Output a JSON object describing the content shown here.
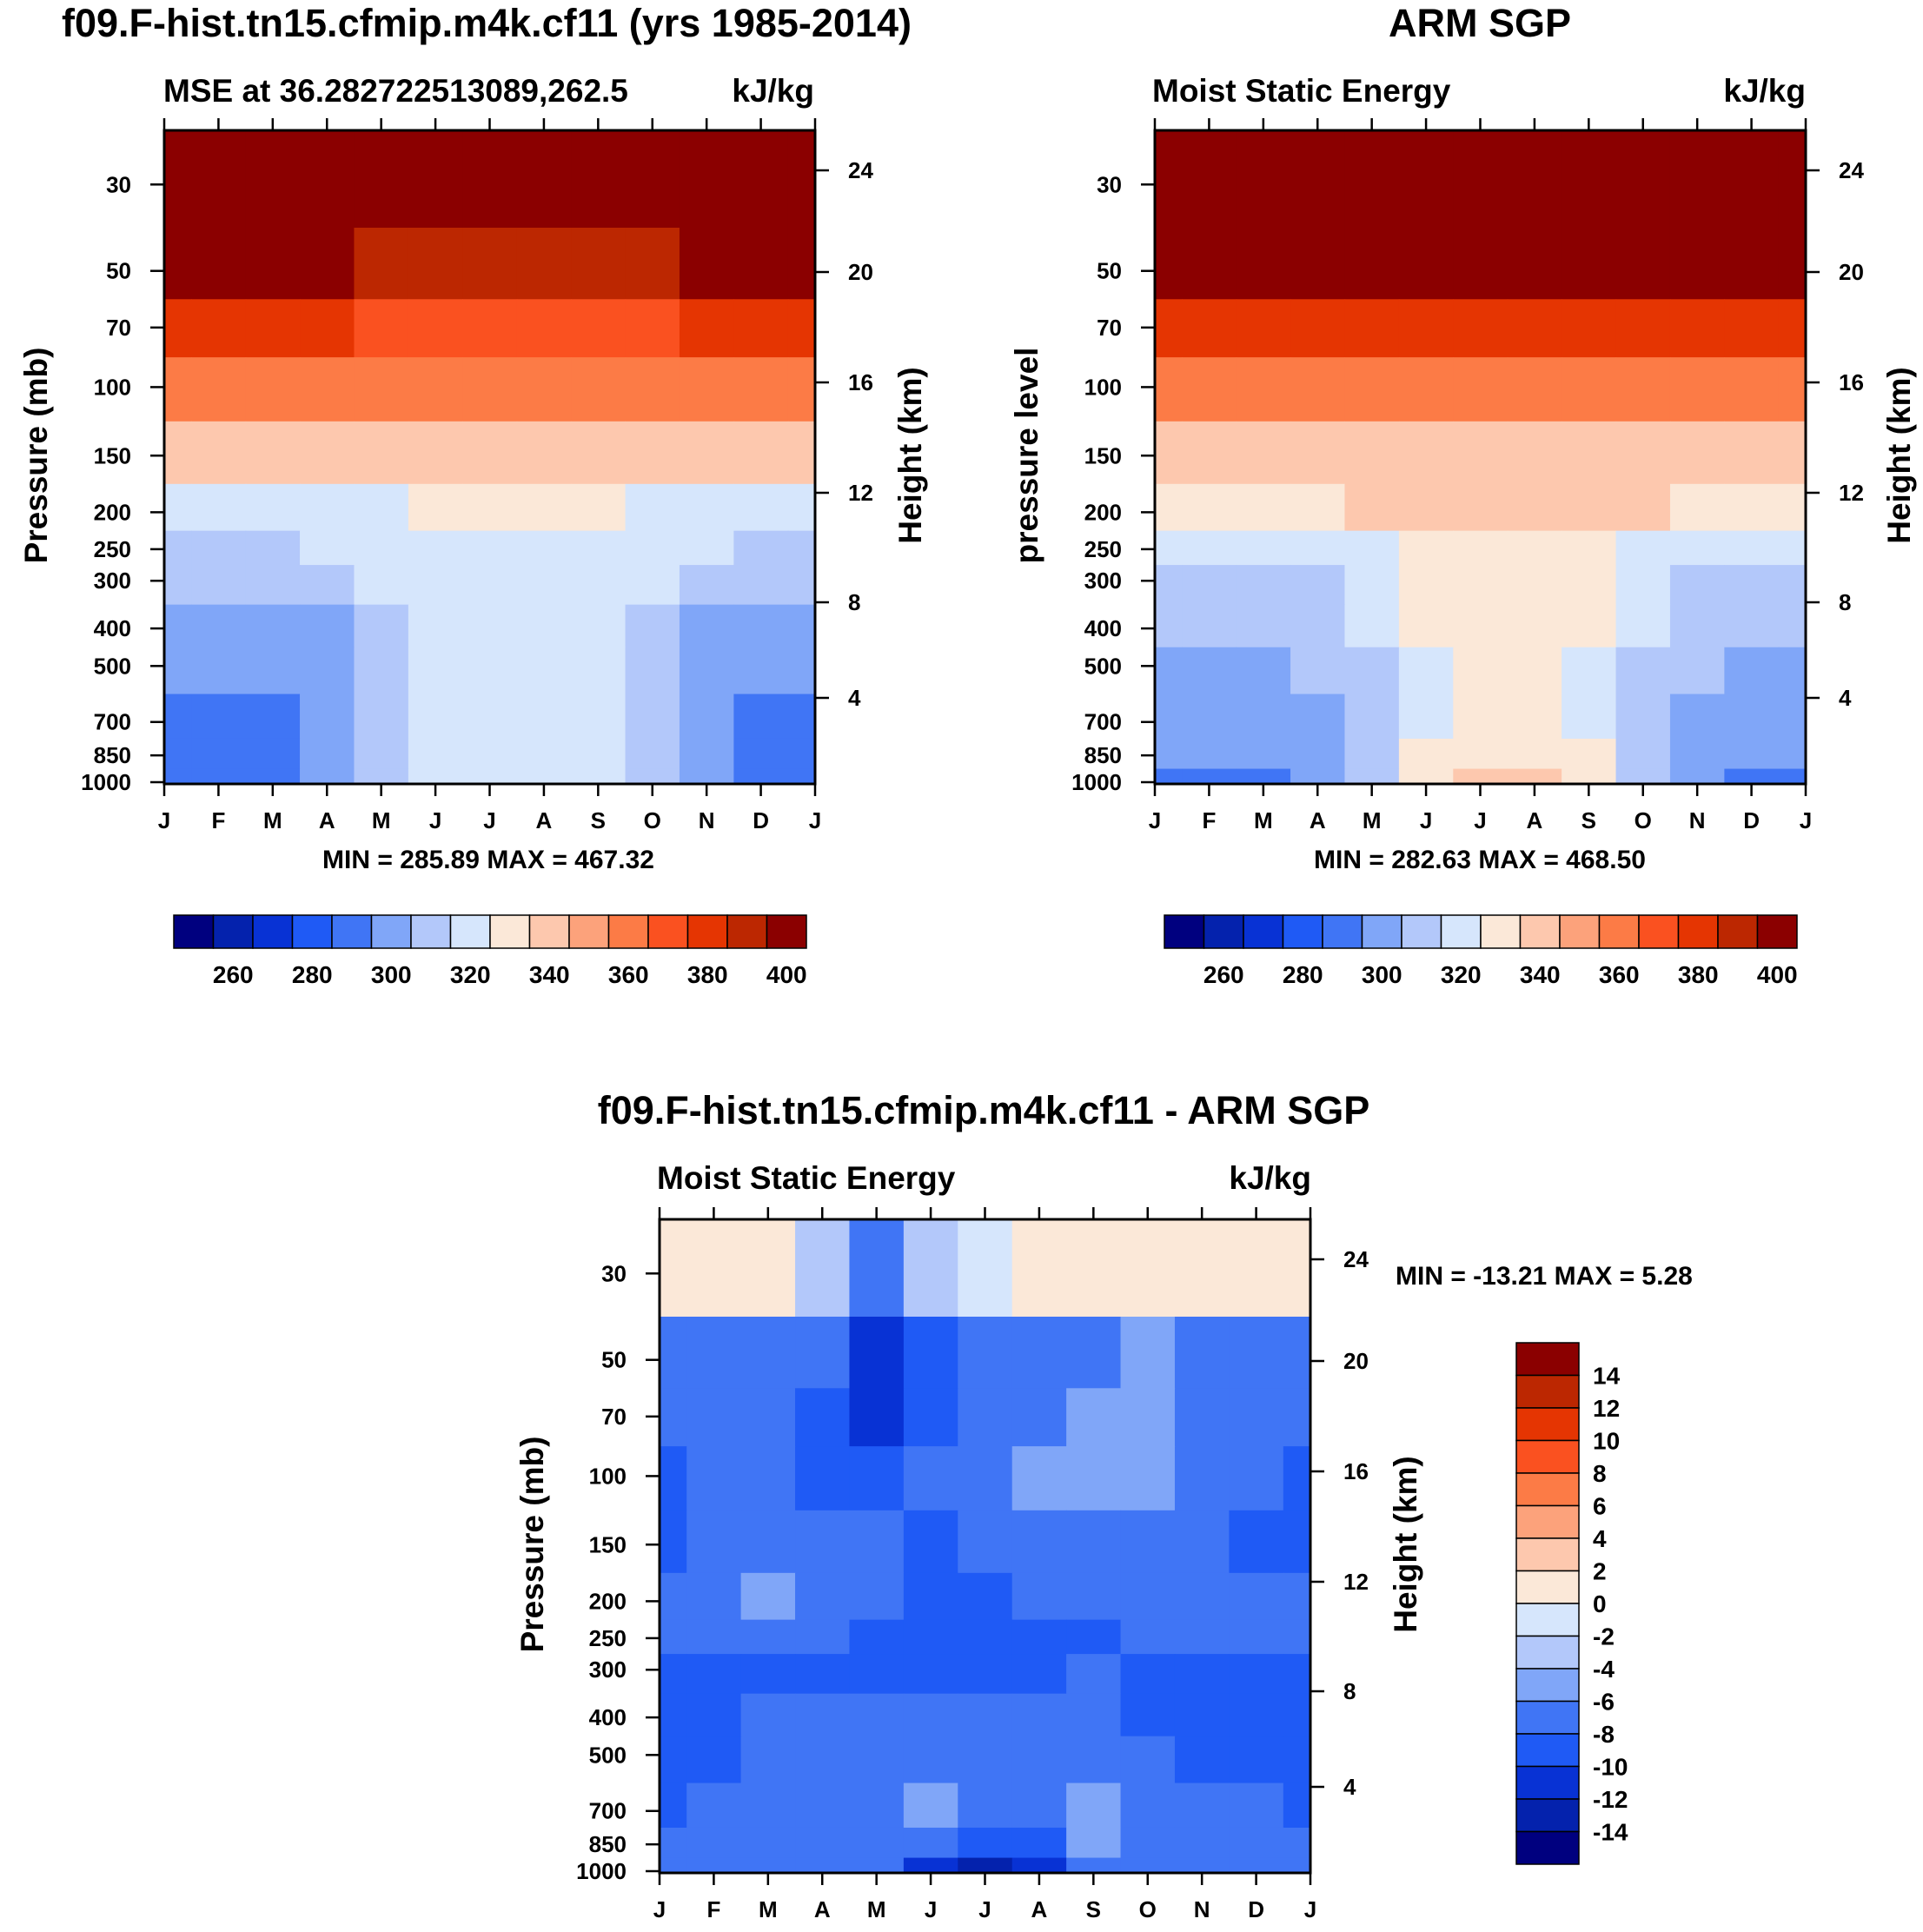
{
  "colors": {
    "frame": "#000000",
    "palette_levels": [
      "#00007f",
      "#0422ad",
      "#0832d4",
      "#1f5af5",
      "#4075f5",
      "#80a6f8",
      "#b3c8fa",
      "#d6e6fc",
      "#fbe8d8",
      "#fdc8ae",
      "#fca27b",
      "#fc7b46",
      "#fa5120",
      "#e53502",
      "#bc2701",
      "#8b0000"
    ]
  },
  "chart_data": [
    {
      "type": "heatmap",
      "figure_title": "f09.F-hist.tn15.cfmip.m4k.cf11 (yrs 1985-2014)",
      "left_title": "MSE at 36.282722513089,262.5",
      "right_title": "kJ/kg",
      "ylabel": "Pressure (mb)",
      "ylabel_right": "Height (km)",
      "stats": "MIN = 285.89 MAX = 467.32",
      "x_ticks": [
        "J",
        "F",
        "M",
        "A",
        "M",
        "J",
        "J",
        "A",
        "S",
        "O",
        "N",
        "D",
        "J"
      ],
      "y_ticks": [
        "30",
        "50",
        "70",
        "100",
        "150",
        "200",
        "250",
        "300",
        "400",
        "500",
        "700",
        "850",
        "1000"
      ],
      "y_ticks_right": [
        "24",
        "20",
        "16",
        "12",
        "8",
        "4"
      ],
      "colorbar_labels": [
        "260",
        "280",
        "300",
        "320",
        "340",
        "360",
        "380",
        "400"
      ],
      "pressure_levels": [
        30,
        50,
        70,
        100,
        150,
        200,
        250,
        300,
        400,
        500,
        700,
        850,
        1000
      ],
      "values_kJkg": [
        [
          460,
          460,
          461,
          461,
          460,
          459,
          458,
          458,
          459,
          460,
          460,
          460,
          460
        ],
        [
          402,
          401,
          400,
          400,
          398,
          396,
          395,
          395,
          396,
          398,
          400,
          401,
          402
        ],
        [
          381,
          380,
          380,
          380,
          378,
          377,
          376,
          376,
          377,
          378,
          380,
          381,
          381
        ],
        [
          366,
          365,
          365,
          365,
          364,
          363,
          362,
          362,
          363,
          364,
          365,
          366,
          366
        ],
        [
          345,
          345,
          344,
          345,
          345,
          344,
          344,
          344,
          344,
          345,
          345,
          345,
          345
        ],
        [
          325,
          325,
          325,
          327,
          328,
          330,
          332,
          332,
          330,
          328,
          326,
          325,
          325
        ],
        [
          318,
          318,
          318,
          320,
          322,
          326,
          329,
          329,
          326,
          322,
          320,
          318,
          318
        ],
        [
          315,
          315,
          315,
          317,
          320,
          324,
          327,
          327,
          324,
          320,
          317,
          315,
          315
        ],
        [
          305,
          305,
          306,
          309,
          314,
          321,
          325,
          325,
          321,
          314,
          309,
          306,
          305
        ],
        [
          300,
          300,
          301,
          305,
          311,
          320,
          324,
          324,
          320,
          311,
          305,
          301,
          300
        ],
        [
          296,
          296,
          298,
          303,
          311,
          321,
          325,
          325,
          321,
          311,
          303,
          298,
          296
        ],
        [
          294,
          294,
          296,
          302,
          311,
          322,
          327,
          327,
          322,
          311,
          302,
          296,
          294
        ],
        [
          292,
          292,
          294,
          300,
          310,
          322,
          328,
          328,
          322,
          310,
          300,
          294,
          292
        ]
      ]
    },
    {
      "type": "heatmap",
      "figure_title": "ARM SGP",
      "left_title": "Moist Static Energy",
      "right_title": "kJ/kg",
      "ylabel": "pressure level",
      "ylabel_right": "Height (km)",
      "stats": "MIN = 282.63 MAX = 468.50",
      "x_ticks": [
        "J",
        "F",
        "M",
        "A",
        "M",
        "J",
        "J",
        "A",
        "S",
        "O",
        "N",
        "D",
        "J"
      ],
      "y_ticks": [
        "30",
        "50",
        "70",
        "100",
        "150",
        "200",
        "250",
        "300",
        "400",
        "500",
        "700",
        "850",
        "1000"
      ],
      "y_ticks_right": [
        "24",
        "20",
        "16",
        "12",
        "8",
        "4"
      ],
      "colorbar_labels": [
        "260",
        "280",
        "300",
        "320",
        "340",
        "360",
        "380",
        "400"
      ],
      "pressure_levels": [
        30,
        50,
        70,
        100,
        150,
        200,
        250,
        300,
        400,
        500,
        700,
        850,
        1000
      ],
      "values_kJkg": [
        [
          462,
          462,
          463,
          463,
          462,
          461,
          460,
          460,
          461,
          462,
          462,
          462,
          462
        ],
        [
          412,
          411,
          410,
          410,
          409,
          408,
          407,
          407,
          408,
          409,
          410,
          411,
          412
        ],
        [
          388,
          388,
          387,
          387,
          386,
          385,
          385,
          385,
          385,
          386,
          387,
          388,
          388
        ],
        [
          368,
          368,
          367,
          367,
          366,
          366,
          365,
          365,
          366,
          366,
          367,
          368,
          368
        ],
        [
          348,
          348,
          348,
          348,
          348,
          348,
          347,
          347,
          348,
          348,
          348,
          348,
          348
        ],
        [
          338,
          338,
          338,
          339,
          340,
          342,
          344,
          344,
          342,
          340,
          339,
          338,
          338
        ],
        [
          320,
          320,
          320,
          322,
          325,
          331,
          336,
          336,
          331,
          325,
          322,
          320,
          320
        ],
        [
          316,
          316,
          316,
          318,
          322,
          330,
          335,
          335,
          330,
          322,
          318,
          316,
          316
        ],
        [
          312,
          312,
          313,
          315,
          320,
          330,
          334,
          334,
          330,
          320,
          315,
          313,
          312
        ],
        [
          308,
          308,
          309,
          312,
          318,
          326,
          330,
          330,
          326,
          318,
          312,
          309,
          308
        ],
        [
          304,
          304,
          305,
          309,
          316,
          326,
          333,
          333,
          326,
          316,
          309,
          305,
          304
        ],
        [
          300,
          300,
          302,
          306,
          314,
          330,
          338,
          338,
          330,
          314,
          306,
          302,
          300
        ],
        [
          296,
          296,
          298,
          304,
          314,
          332,
          341,
          341,
          332,
          314,
          304,
          298,
          296
        ]
      ]
    },
    {
      "type": "heatmap",
      "figure_title": "f09.F-hist.tn15.cfmip.m4k.cf11 - ARM SGP",
      "left_title": "Moist Static Energy",
      "right_title": "kJ/kg",
      "ylabel": "Pressure (mb)",
      "ylabel_right": "Height (km)",
      "stats": "MIN = -13.21 MAX =   5.28",
      "x_ticks": [
        "J",
        "F",
        "M",
        "A",
        "M",
        "J",
        "J",
        "A",
        "S",
        "O",
        "N",
        "D",
        "J"
      ],
      "y_ticks": [
        "30",
        "50",
        "70",
        "100",
        "150",
        "200",
        "250",
        "300",
        "400",
        "500",
        "700",
        "850",
        "1000"
      ],
      "y_ticks_right": [
        "24",
        "20",
        "16",
        "12",
        "8",
        "4"
      ],
      "colorbar_labels": [
        "14",
        "12",
        "10",
        "8",
        "6",
        "4",
        "2",
        "0",
        "-2",
        "-4",
        "-6",
        "-8",
        "-10",
        "-12",
        "-14"
      ],
      "pressure_levels": [
        30,
        50,
        70,
        100,
        150,
        200,
        250,
        300,
        400,
        500,
        700,
        850,
        1000
      ],
      "values_kJkg": [
        [
          1.5,
          1.5,
          1.0,
          -3.0,
          -6.5,
          -4.0,
          -2.0,
          1.0,
          1.5,
          1.0,
          0.5,
          0.5,
          1.0
        ],
        [
          -7.2,
          -7.0,
          -7.0,
          -8.0,
          -10.8,
          -8.5,
          -7.5,
          -7.5,
          -6.5,
          -6.0,
          -6.8,
          -7.0,
          -7.2
        ],
        [
          -7.5,
          -7.5,
          -7.5,
          -8.5,
          -10.2,
          -8.5,
          -7.0,
          -6.5,
          -5.5,
          -5.0,
          -6.5,
          -7.2,
          -7.5
        ],
        [
          -8.2,
          -7.8,
          -7.5,
          -8.2,
          -8.5,
          -7.5,
          -6.5,
          -5.5,
          -5.0,
          -5.2,
          -6.5,
          -7.5,
          -8.2
        ],
        [
          -8.5,
          -8.0,
          -7.2,
          -7.5,
          -8.0,
          -8.5,
          -8.0,
          -7.5,
          -7.0,
          -7.5,
          -7.8,
          -8.5,
          -8.5
        ],
        [
          -7.5,
          -7.0,
          -5.5,
          -7.0,
          -8.0,
          -8.5,
          -8.2,
          -8.0,
          -7.5,
          -7.5,
          -7.0,
          -7.5,
          -7.5
        ],
        [
          -7.8,
          -7.5,
          -7.5,
          -8.0,
          -8.2,
          -8.5,
          -8.5,
          -8.2,
          -8.2,
          -8.0,
          -7.8,
          -7.8,
          -7.8
        ],
        [
          -8.5,
          -8.2,
          -8.2,
          -9.5,
          -8.5,
          -8.5,
          -8.2,
          -8.2,
          -7.8,
          -9.0,
          -8.5,
          -8.2,
          -8.5
        ],
        [
          -8.5,
          -8.2,
          -8.0,
          -8.0,
          -7.5,
          -7.2,
          -7.0,
          -7.2,
          -7.0,
          -10.0,
          -9.0,
          -8.2,
          -8.5
        ],
        [
          -8.5,
          -8.2,
          -8.0,
          -7.2,
          -7.0,
          -7.0,
          -7.0,
          -7.2,
          -6.5,
          -8.0,
          -8.5,
          -8.2,
          -8.5
        ],
        [
          -8.2,
          -8.0,
          -8.0,
          -7.5,
          -7.0,
          -6.0,
          -7.0,
          -7.0,
          -5.0,
          -7.5,
          -8.0,
          -8.0,
          -8.2
        ],
        [
          -7.8,
          -7.8,
          -8.0,
          -7.5,
          -7.5,
          -8.0,
          -9.0,
          -8.5,
          -6.0,
          -8.0,
          -7.5,
          -7.5,
          -7.8
        ],
        [
          -7.5,
          -7.5,
          -7.5,
          -7.5,
          -7.8,
          -10.5,
          -13.0,
          -10.5,
          -7.0,
          -7.5,
          -7.0,
          -6.5,
          -7.0
        ]
      ]
    }
  ]
}
